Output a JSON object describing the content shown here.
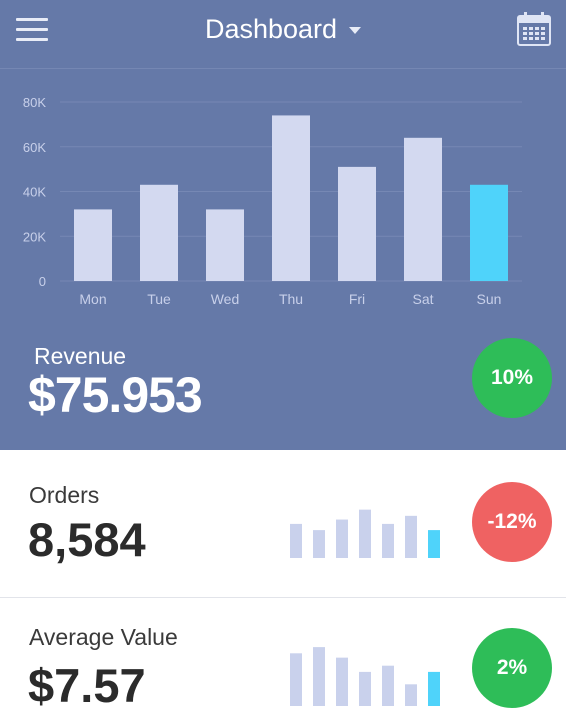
{
  "header": {
    "title": "Dashboard",
    "menu_icon": "hamburger-menu-icon",
    "dropdown_icon": "caret-down-icon",
    "calendar_icon": "calendar-icon"
  },
  "colors": {
    "panel_bg": "#6579a8",
    "bar": "#d3d9f0",
    "bar_highlight": "#4fd3fa",
    "mini_bar": "#c9d1ec",
    "green": "#2ebd58",
    "red": "#ef6262"
  },
  "chart_data": {
    "type": "bar",
    "categories": [
      "Mon",
      "Tue",
      "Wed",
      "Thu",
      "Fri",
      "Sat",
      "Sun"
    ],
    "values": [
      32000,
      43000,
      32000,
      74000,
      51000,
      64000,
      43000
    ],
    "highlighted": "Sun",
    "y_ticks": [
      "80K",
      "60K",
      "40K",
      "20K",
      "0"
    ],
    "ylim": [
      0,
      80000
    ],
    "grid": true
  },
  "revenue": {
    "label": "Revenue",
    "value": "$75.953",
    "change": "10%",
    "change_color": "#2ebd58"
  },
  "orders": {
    "label": "Orders",
    "value": "8,584",
    "change": "-12%",
    "change_color": "#ef6262",
    "trend": [
      0.55,
      0.45,
      0.62,
      0.78,
      0.55,
      0.68,
      0.45
    ]
  },
  "average": {
    "label": "Average Value",
    "value": "$7.57",
    "change": "2%",
    "change_color": "#2ebd58",
    "trend": [
      0.85,
      0.95,
      0.78,
      0.55,
      0.65,
      0.35,
      0.55
    ]
  }
}
